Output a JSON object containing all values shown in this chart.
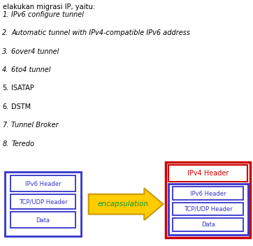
{
  "text_top": "elakukan migrasi IP, yaitu:",
  "list_items": [
    "IPv6 configure tunnel",
    "Automatic tunnel with IPv4-compatible IPv6 address",
    "6over4 tunnel",
    "6to4 tunnel",
    "ISATAP",
    "DSTM",
    "Tunnel Broker",
    "Teredo"
  ],
  "list_italic": [
    true,
    true,
    true,
    true,
    false,
    false,
    true,
    true
  ],
  "left_box_labels": [
    "IPv6 Header",
    "TCP/UDP Header",
    "Data"
  ],
  "right_box_labels": [
    "IPv6 Header",
    "TCP/UDP Header",
    "Data"
  ],
  "ipv4_header_label": "IPv4 Header",
  "arrow_label": "encapsulation",
  "color_blue": "#3333cc",
  "color_red": "#cc0000",
  "color_green": "#009933",
  "color_yellow": "#ffcc00",
  "color_yellow_edge": "#cc9900",
  "color_white": "#ffffff",
  "color_black": "#000000",
  "bg_color": "#ffffff"
}
